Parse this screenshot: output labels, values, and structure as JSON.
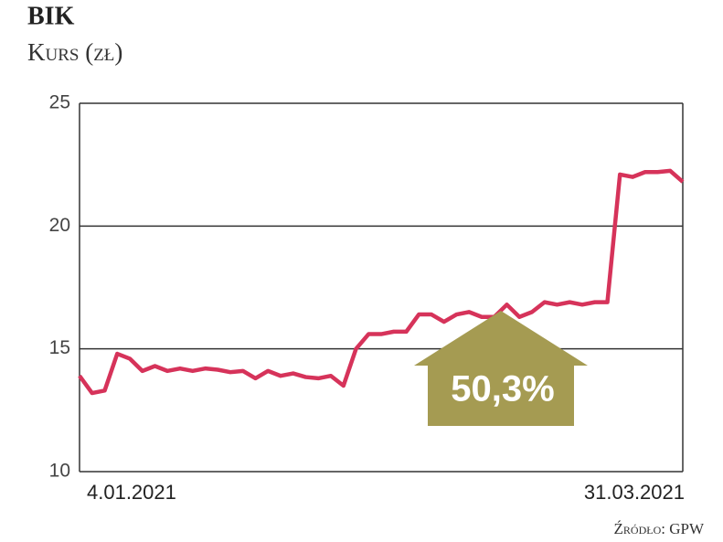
{
  "chart_data": {
    "type": "line",
    "title": "BIK",
    "subtitle": "Kurs (zł)",
    "source": "Źródło: GPW",
    "annotation": "50,3%",
    "categories": [
      "4.01.2021",
      null,
      null,
      null,
      null,
      null,
      null,
      null,
      null,
      null,
      null,
      null,
      null,
      null,
      null,
      null,
      null,
      null,
      null,
      null,
      null,
      null,
      null,
      null,
      null,
      null,
      null,
      null,
      null,
      null,
      null,
      null,
      null,
      null,
      null,
      null,
      null,
      null,
      null,
      null,
      null,
      null,
      null,
      null,
      null,
      null,
      null,
      null,
      "31.03.2021"
    ],
    "series": [
      {
        "name": "BIK",
        "color": "#d6335a",
        "values": [
          13.9,
          13.2,
          13.3,
          14.8,
          14.6,
          14.1,
          14.3,
          14.1,
          14.2,
          14.1,
          14.2,
          14.15,
          14.05,
          14.1,
          13.8,
          14.1,
          13.9,
          14.0,
          13.85,
          13.8,
          13.9,
          13.5,
          15.0,
          15.6,
          15.6,
          15.7,
          15.7,
          16.4,
          16.4,
          16.1,
          16.4,
          16.5,
          16.3,
          16.3,
          16.8,
          16.3,
          16.5,
          16.9,
          16.8,
          16.9,
          16.8,
          16.9,
          16.9,
          22.1,
          22.0,
          22.2,
          22.2,
          22.25,
          21.8
        ]
      }
    ],
    "ylim": [
      10,
      25
    ],
    "yticks": [
      10,
      15,
      20,
      25
    ],
    "grid": true,
    "annotation_color": "#a59b52"
  }
}
